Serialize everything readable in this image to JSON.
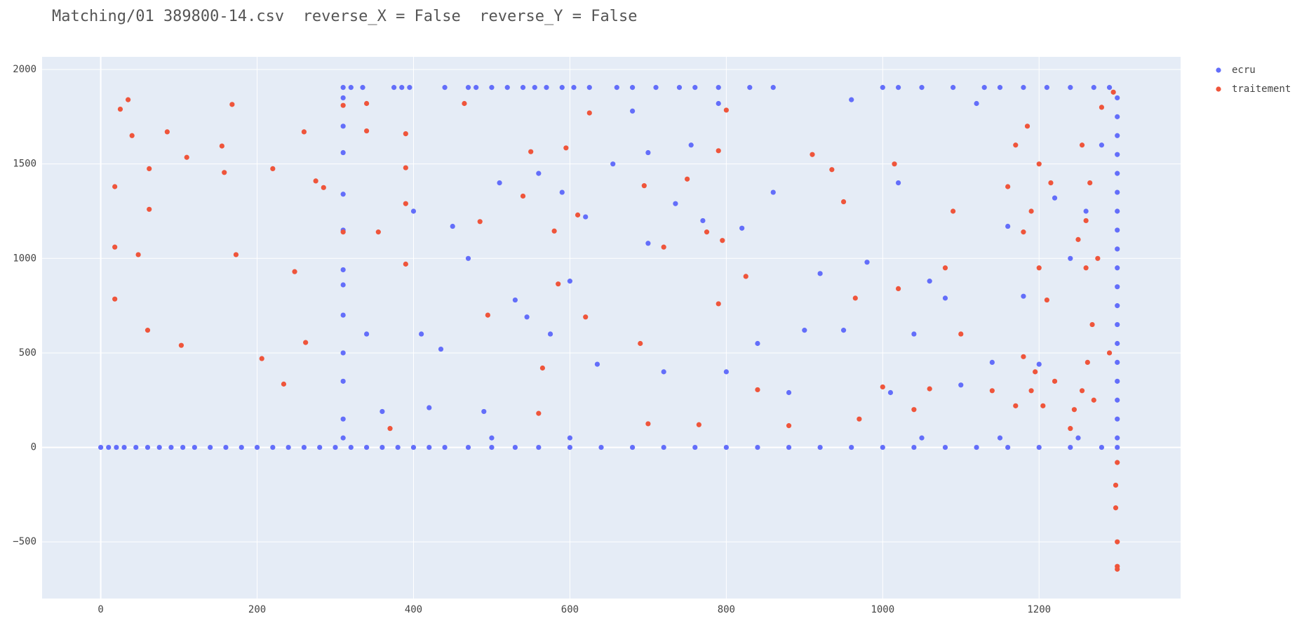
{
  "chart_data": {
    "type": "scatter",
    "title": "Matching/01 389800-14.csv  reverse_X = False  reverse_Y = False",
    "xlim": [
      -75,
      1381
    ],
    "ylim": [
      -800,
      2067
    ],
    "xticks": [
      0,
      200,
      400,
      600,
      800,
      1000,
      1200
    ],
    "yticks": [
      {
        "value": -500,
        "label": "−500"
      },
      0,
      500,
      1000,
      1500,
      2000
    ],
    "grid": true,
    "legend": "right",
    "series": [
      {
        "name": "ecru",
        "color": "#636efa",
        "x": [
          0,
          10,
          20,
          30,
          45,
          60,
          75,
          90,
          105,
          120,
          140,
          160,
          180,
          200,
          220,
          240,
          260,
          280,
          300,
          320,
          340,
          360,
          380,
          400,
          420,
          440,
          470,
          500,
          530,
          560,
          600,
          640,
          680,
          720,
          760,
          800,
          840,
          880,
          920,
          960,
          1000,
          1040,
          1080,
          1120,
          1160,
          1200,
          1240,
          1280,
          1300,
          310,
          320,
          335,
          375,
          385,
          395,
          440,
          470,
          480,
          500,
          520,
          540,
          555,
          570,
          590,
          605,
          625,
          660,
          680,
          710,
          740,
          760,
          790,
          830,
          860,
          1000,
          1020,
          1050,
          1090,
          1130,
          1150,
          1180,
          1210,
          1240,
          1270,
          1290,
          1300,
          1300,
          1300,
          1300,
          1300,
          1300,
          1300,
          1300,
          1300,
          1300,
          1300,
          1300,
          1300,
          1300,
          1300,
          1300,
          1300,
          1300,
          1300,
          310,
          310,
          310,
          310,
          310,
          310,
          310,
          310,
          310,
          310,
          310,
          310,
          340,
          360,
          400,
          410,
          420,
          435,
          450,
          470,
          490,
          510,
          530,
          545,
          560,
          575,
          590,
          600,
          620,
          635,
          655,
          680,
          700,
          720,
          735,
          755,
          770,
          790,
          800,
          820,
          840,
          860,
          880,
          900,
          920,
          960,
          980,
          1010,
          1020,
          1040,
          1060,
          1080,
          1100,
          1120,
          1140,
          1160,
          1180,
          1200,
          1220,
          1240,
          1260,
          1280,
          1150,
          1250,
          1050,
          950,
          700,
          600,
          500
        ],
        "values": [
          0,
          0,
          0,
          0,
          0,
          0,
          0,
          0,
          0,
          0,
          0,
          0,
          0,
          0,
          0,
          0,
          0,
          0,
          0,
          0,
          0,
          0,
          0,
          0,
          0,
          0,
          0,
          0,
          0,
          0,
          0,
          0,
          0,
          0,
          0,
          0,
          0,
          0,
          0,
          0,
          0,
          0,
          0,
          0,
          0,
          0,
          0,
          0,
          0,
          1905,
          1905,
          1905,
          1905,
          1905,
          1905,
          1905,
          1905,
          1905,
          1905,
          1905,
          1905,
          1905,
          1905,
          1905,
          1905,
          1905,
          1905,
          1905,
          1905,
          1905,
          1905,
          1905,
          1905,
          1905,
          1905,
          1905,
          1905,
          1905,
          1905,
          1905,
          1905,
          1905,
          1905,
          1905,
          1905,
          50,
          150,
          250,
          350,
          450,
          550,
          650,
          750,
          850,
          950,
          1050,
          1150,
          1250,
          1350,
          1450,
          1550,
          1650,
          1750,
          1850,
          50,
          150,
          350,
          500,
          700,
          860,
          940,
          1150,
          1340,
          1560,
          1700,
          1850,
          600,
          190,
          1250,
          600,
          210,
          520,
          1170,
          1000,
          190,
          1400,
          780,
          690,
          1450,
          600,
          1350,
          880,
          1220,
          440,
          1500,
          1780,
          1080,
          400,
          1290,
          1600,
          1200,
          1820,
          400,
          1160,
          550,
          1350,
          290,
          620,
          920,
          1840,
          980,
          290,
          1400,
          600,
          880,
          790,
          330,
          1820,
          450,
          1170,
          800,
          440,
          1320,
          1000,
          1250,
          1600,
          50,
          50,
          50,
          620,
          1560,
          50,
          50
        ]
      },
      {
        "name": "traitement",
        "color": "#ef553b",
        "x": [
          18,
          18,
          18,
          25,
          35,
          40,
          48,
          60,
          62,
          62,
          85,
          103,
          110,
          155,
          158,
          168,
          173,
          206,
          220,
          234,
          248,
          260,
          262,
          275,
          285,
          310,
          310,
          340,
          340,
          355,
          370,
          390,
          390,
          390,
          390,
          465,
          485,
          495,
          540,
          550,
          560,
          565,
          580,
          585,
          595,
          610,
          620,
          625,
          690,
          695,
          700,
          720,
          750,
          765,
          775,
          790,
          790,
          795,
          800,
          825,
          840,
          880,
          910,
          935,
          950,
          965,
          970,
          1000,
          1015,
          1020,
          1040,
          1060,
          1080,
          1090,
          1100,
          1140,
          1160,
          1170,
          1170,
          1180,
          1180,
          1185,
          1190,
          1190,
          1195,
          1200,
          1200,
          1205,
          1210,
          1215,
          1220,
          1240,
          1245,
          1250,
          1255,
          1255,
          1260,
          1260,
          1262,
          1265,
          1268,
          1270,
          1275,
          1280,
          1290,
          1295,
          1300,
          1298,
          1298,
          1300,
          1300,
          1300
        ],
        "values": [
          1380,
          1060,
          785,
          1790,
          1840,
          1650,
          1020,
          620,
          1260,
          1475,
          1670,
          540,
          1535,
          1595,
          1455,
          1815,
          1020,
          470,
          1475,
          335,
          930,
          1670,
          555,
          1410,
          1375,
          1810,
          1140,
          1820,
          1675,
          1140,
          100,
          1660,
          1480,
          1290,
          970,
          1820,
          1195,
          700,
          1330,
          1565,
          180,
          420,
          1145,
          865,
          1585,
          1230,
          690,
          1770,
          550,
          1385,
          125,
          1060,
          1420,
          120,
          1140,
          1570,
          760,
          1095,
          1785,
          905,
          305,
          115,
          1550,
          1470,
          1300,
          790,
          150,
          320,
          1500,
          840,
          200,
          310,
          950,
          1250,
          600,
          300,
          1380,
          220,
          1600,
          480,
          1140,
          1700,
          300,
          1250,
          400,
          1500,
          950,
          220,
          780,
          1400,
          350,
          100,
          200,
          1100,
          300,
          1600,
          950,
          1200,
          450,
          1400,
          650,
          250,
          1000,
          1800,
          500,
          1880,
          -80,
          -200,
          -320,
          -500,
          -630,
          -645
        ]
      }
    ]
  }
}
